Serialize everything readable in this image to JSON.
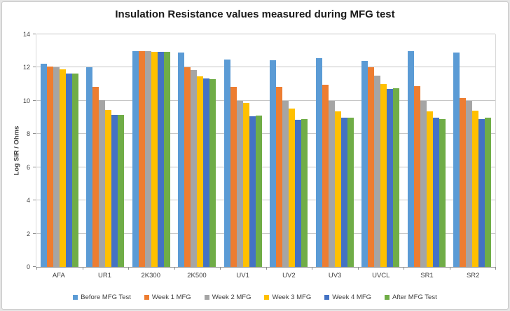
{
  "chart_data": {
    "type": "bar",
    "title": "Insulation Resistance values measured during MFG test",
    "ylabel": "Log SIR / Ohms",
    "xlabel": "",
    "ylim": [
      0,
      14
    ],
    "yticks": [
      0,
      2,
      4,
      6,
      8,
      10,
      12,
      14
    ],
    "grid": true,
    "legend_position": "bottom",
    "categories": [
      "AFA",
      "UR1",
      "2K300",
      "2K500",
      "UV1",
      "UV2",
      "UV3",
      "UVCL",
      "SR1",
      "SR2"
    ],
    "series": [
      {
        "name": "Before MFG Test",
        "color": "#5B9BD5",
        "values": [
          12.25,
          12.0,
          13.0,
          12.9,
          12.5,
          12.45,
          12.55,
          12.4,
          13.0,
          12.9
        ]
      },
      {
        "name": "Week 1 MFG",
        "color": "#ED7D31",
        "values": [
          12.05,
          10.85,
          13.0,
          12.0,
          10.85,
          10.85,
          10.95,
          12.0,
          10.9,
          10.15
        ]
      },
      {
        "name": "Week 2 MFG",
        "color": "#A5A5A5",
        "values": [
          12.0,
          10.05,
          13.0,
          11.85,
          10.0,
          10.0,
          10.0,
          11.5,
          10.0,
          10.0
        ]
      },
      {
        "name": "Week 3 MFG",
        "color": "#FFC000",
        "values": [
          11.9,
          9.45,
          12.95,
          11.45,
          9.85,
          9.55,
          9.35,
          11.0,
          9.35,
          9.4
        ]
      },
      {
        "name": "Week 4 MFG",
        "color": "#4472C4",
        "values": [
          11.65,
          9.15,
          12.95,
          11.35,
          9.05,
          8.85,
          9.0,
          10.7,
          9.0,
          8.9
        ]
      },
      {
        "name": "After MFG Test",
        "color": "#70AD47",
        "values": [
          11.65,
          9.15,
          12.95,
          11.3,
          9.1,
          8.9,
          9.0,
          10.75,
          8.9,
          9.0
        ]
      }
    ]
  }
}
